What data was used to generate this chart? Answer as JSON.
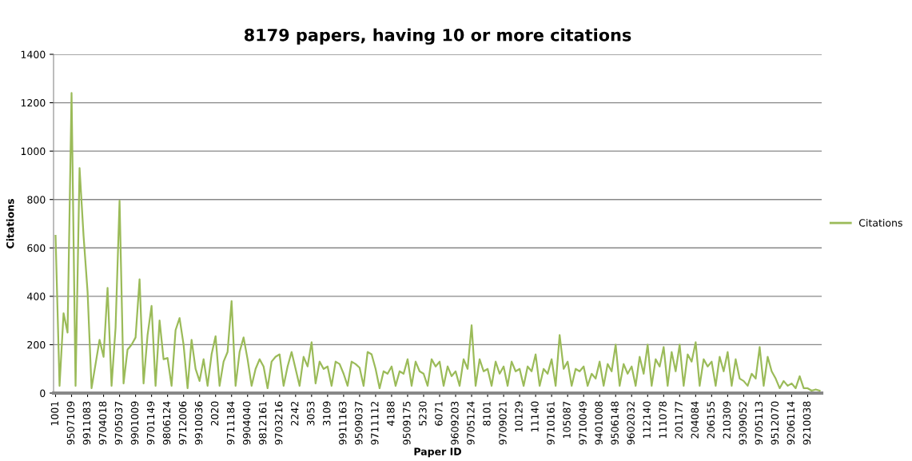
{
  "chart_data": {
    "type": "line",
    "title": "8179 papers, having 10 or more citations",
    "xlabel": "Paper ID",
    "ylabel": "Citations",
    "categories": [
      "1001",
      null,
      null,
      null,
      "9507109",
      null,
      null,
      null,
      "9911083",
      null,
      null,
      null,
      "9704018",
      null,
      null,
      null,
      "9705037",
      null,
      null,
      null,
      "9901009",
      null,
      null,
      null,
      "9701149",
      null,
      null,
      null,
      "9806124",
      null,
      null,
      null,
      "9712006",
      null,
      null,
      null,
      "9910036",
      null,
      null,
      null,
      "2020",
      null,
      null,
      null,
      "9711184",
      null,
      null,
      null,
      "9904040",
      null,
      null,
      null,
      "9812161",
      null,
      null,
      null,
      "9703216",
      null,
      null,
      null,
      "2242",
      null,
      null,
      null,
      "3053",
      null,
      null,
      null,
      "3109",
      null,
      null,
      null,
      "9911163",
      null,
      null,
      null,
      "9509037",
      null,
      null,
      null,
      "9711112",
      null,
      null,
      null,
      "4188",
      null,
      null,
      null,
      "9509175",
      null,
      null,
      null,
      "5230",
      null,
      null,
      null,
      "6071",
      null,
      null,
      null,
      "9609203",
      null,
      null,
      null,
      "9705124",
      null,
      null,
      null,
      "8101",
      null,
      null,
      null,
      "9709021",
      null,
      null,
      null,
      "10129",
      null,
      null,
      null,
      "11140",
      null,
      null,
      null,
      "9710161",
      null,
      null,
      null,
      "105087",
      null,
      null,
      null,
      "9710049",
      null,
      null,
      null,
      "9401008",
      null,
      null,
      null,
      "9506148",
      null,
      null,
      null,
      "9602032",
      null,
      null,
      null,
      "112140",
      null,
      null,
      null,
      "111078",
      null,
      null,
      null,
      "201177",
      null,
      null,
      null,
      "204084",
      null,
      null,
      null,
      "206155",
      null,
      null,
      null,
      "210309",
      null,
      null,
      null,
      "9309052",
      null,
      null,
      null,
      "9705113",
      null,
      null,
      null,
      "9512070",
      null,
      null,
      null,
      "9206114",
      null,
      null,
      null,
      "9210038",
      null,
      null,
      null
    ],
    "series": [
      {
        "name": "Citations",
        "color": "#9bbb59",
        "values": [
          650,
          30,
          330,
          250,
          1240,
          30,
          930,
          650,
          420,
          20,
          120,
          220,
          150,
          435,
          30,
          270,
          795,
          40,
          180,
          200,
          230,
          470,
          40,
          240,
          360,
          30,
          300,
          140,
          145,
          30,
          260,
          310,
          200,
          20,
          220,
          100,
          50,
          140,
          30,
          160,
          235,
          30,
          130,
          170,
          380,
          30,
          170,
          230,
          140,
          30,
          100,
          140,
          110,
          20,
          130,
          150,
          160,
          30,
          110,
          170,
          100,
          30,
          150,
          110,
          210,
          40,
          130,
          100,
          110,
          30,
          130,
          120,
          80,
          30,
          130,
          120,
          105,
          30,
          170,
          160,
          100,
          20,
          90,
          80,
          110,
          30,
          90,
          80,
          140,
          30,
          130,
          90,
          80,
          30,
          140,
          110,
          130,
          30,
          110,
          70,
          90,
          30,
          140,
          100,
          280,
          30,
          140,
          90,
          100,
          30,
          130,
          80,
          110,
          30,
          130,
          90,
          100,
          30,
          110,
          90,
          160,
          30,
          100,
          80,
          140,
          30,
          240,
          100,
          130,
          30,
          100,
          90,
          110,
          30,
          80,
          60,
          130,
          30,
          120,
          90,
          200,
          30,
          120,
          80,
          110,
          30,
          150,
          80,
          200,
          30,
          140,
          110,
          190,
          30,
          170,
          90,
          200,
          30,
          160,
          130,
          210,
          30,
          140,
          110,
          130,
          30,
          150,
          90,
          170,
          30,
          140,
          60,
          50,
          30,
          80,
          60,
          190,
          30,
          150,
          90,
          60,
          20,
          50,
          30,
          40,
          20,
          70,
          20,
          20,
          10,
          15,
          10
        ]
      }
    ],
    "ylim": [
      0,
      1400
    ],
    "yticks": [
      0,
      200,
      400,
      600,
      800,
      1000,
      1200,
      1400
    ],
    "grid": "y",
    "legend": "right",
    "line_style": "solid",
    "marker": "none"
  }
}
